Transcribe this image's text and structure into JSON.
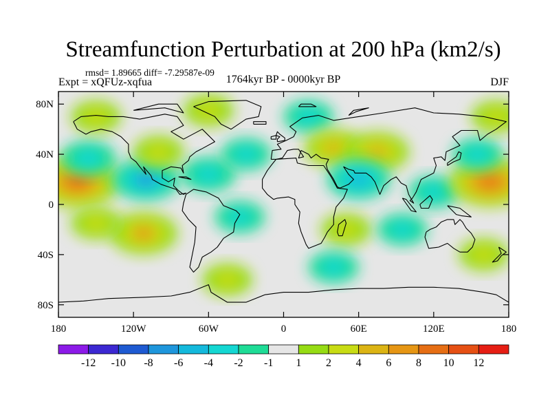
{
  "chart_data": {
    "type": "heatmap",
    "title": "Streamfunction Perturbation at 200 hPa (km2/s)",
    "stats": "rmsd= 1.89665 diff= -7.29587e-09",
    "left_label": "Expt = xQFUz-xqfua",
    "center_label": "1764kyr BP - 0000kyr BP",
    "right_label": "DJF",
    "projection": "cylindrical-equidistant",
    "xlim": [
      -180,
      180
    ],
    "ylim": [
      -90,
      90
    ],
    "x_ticks": [
      -180,
      -120,
      -60,
      0,
      60,
      120,
      180
    ],
    "x_tick_labels": [
      "180",
      "120W",
      "60W",
      "0",
      "60E",
      "120E",
      "180"
    ],
    "y_ticks": [
      80,
      40,
      0,
      -40,
      -80
    ],
    "y_tick_labels": [
      "80N",
      "40N",
      "0",
      "40S",
      "80S"
    ],
    "colorbar": {
      "colors": [
        "#8c1ae8",
        "#3c28d2",
        "#1e5ad2",
        "#1e96dc",
        "#14b9dc",
        "#14d7d2",
        "#1edc96",
        "#e6e6e6",
        "#96dc14",
        "#c8dc14",
        "#dcb414",
        "#e69614",
        "#e66e14",
        "#e65014",
        "#e61e14"
      ],
      "labels": [
        "-12",
        "-10",
        "-8",
        "-6",
        "-4",
        "-2",
        "-1",
        "1",
        "2",
        "4",
        "6",
        "8",
        "10",
        "12"
      ]
    },
    "anomalies": [
      {
        "lon": -165,
        "lat": 18,
        "value": 10
      },
      {
        "lon": -156,
        "lat": 37,
        "value": -3
      },
      {
        "lon": -60,
        "lat": 75,
        "value": 2
      },
      {
        "lon": 20,
        "lat": 70,
        "value": -2
      },
      {
        "lon": -150,
        "lat": 70,
        "value": 2
      },
      {
        "lon": -110,
        "lat": 20,
        "value": -6
      },
      {
        "lon": -60,
        "lat": 24,
        "value": -3
      },
      {
        "lon": -35,
        "lat": -10,
        "value": -2
      },
      {
        "lon": -112,
        "lat": -23,
        "value": 6
      },
      {
        "lon": -150,
        "lat": -15,
        "value": 2
      },
      {
        "lon": -100,
        "lat": 42,
        "value": 2
      },
      {
        "lon": -30,
        "lat": 40,
        "value": -2
      },
      {
        "lon": 40,
        "lat": 45,
        "value": 4
      },
      {
        "lon": 75,
        "lat": 42,
        "value": 5
      },
      {
        "lon": 60,
        "lat": 20,
        "value": -5
      },
      {
        "lon": 120,
        "lat": 10,
        "value": -2
      },
      {
        "lon": 165,
        "lat": 18,
        "value": 9
      },
      {
        "lon": 155,
        "lat": 40,
        "value": -2
      },
      {
        "lon": 170,
        "lat": 70,
        "value": 2
      },
      {
        "lon": 50,
        "lat": -20,
        "value": 2
      },
      {
        "lon": 95,
        "lat": -20,
        "value": -2
      },
      {
        "lon": -45,
        "lat": -60,
        "value": 2
      },
      {
        "lon": 40,
        "lat": -50,
        "value": -2
      },
      {
        "lon": 160,
        "lat": -40,
        "value": 2
      }
    ]
  }
}
